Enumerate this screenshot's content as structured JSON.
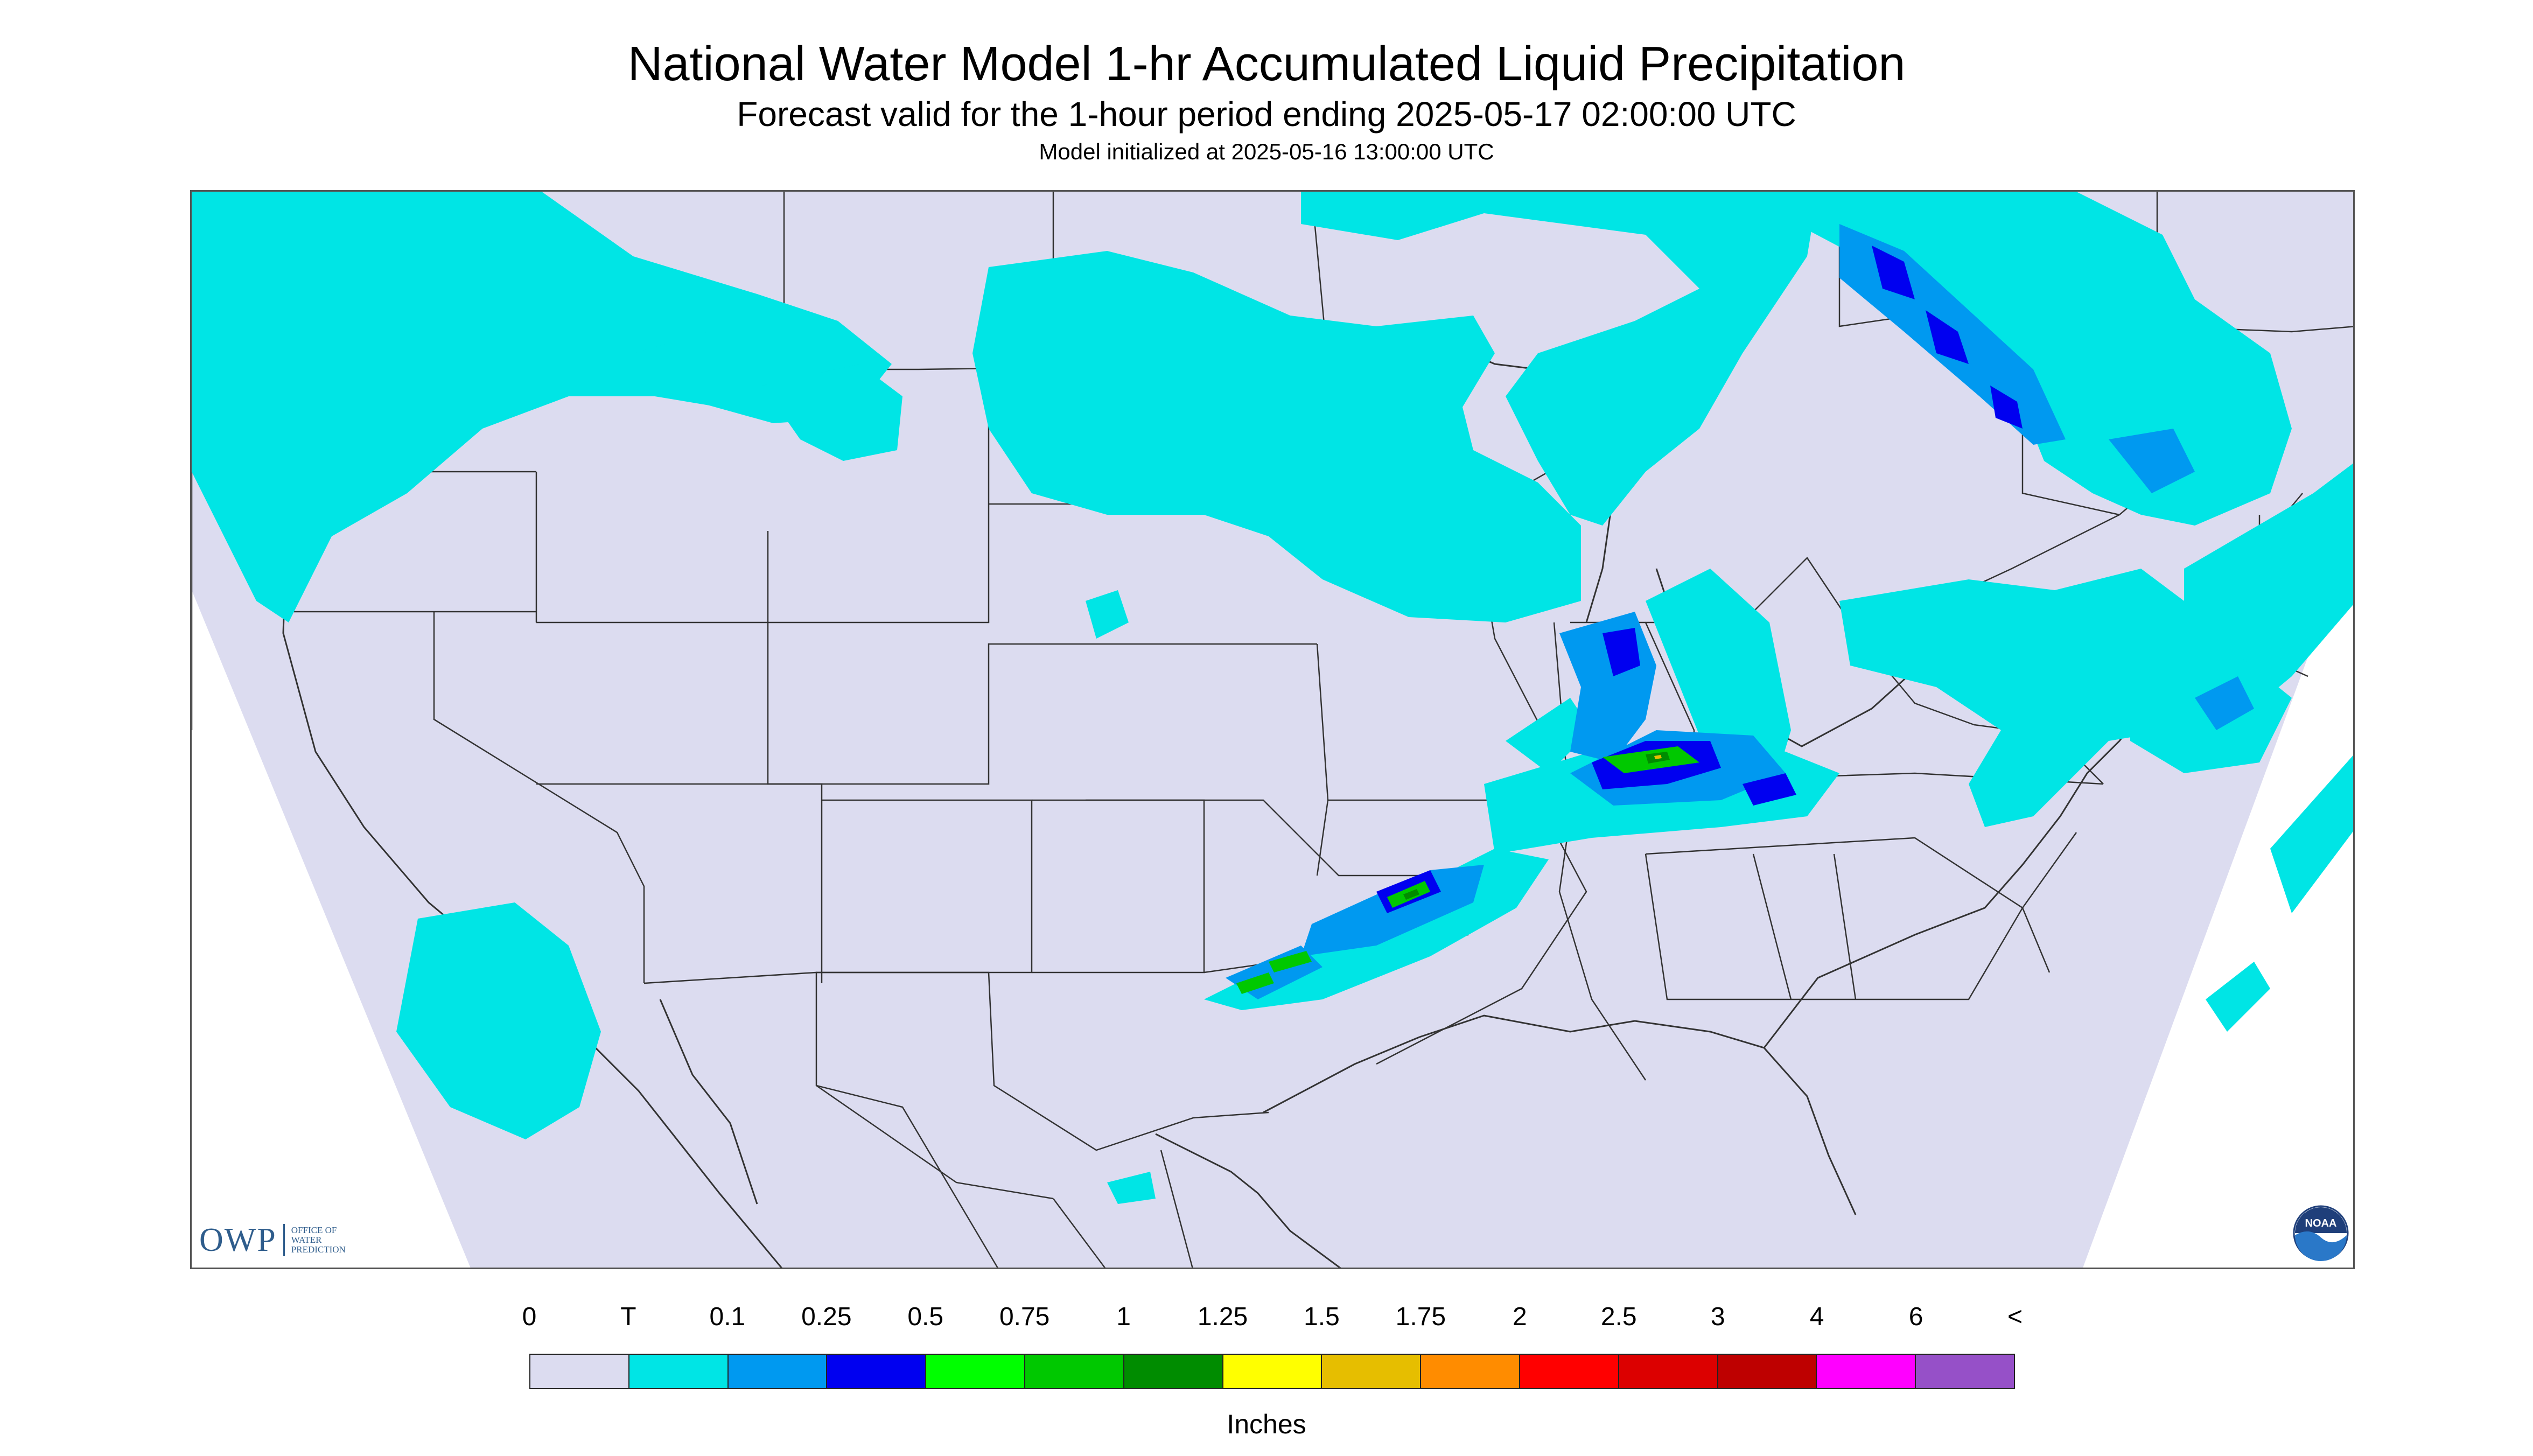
{
  "title": "National Water Model 1-hr Accumulated Liquid Precipitation",
  "subtitle": "Forecast valid for the 1-hour period ending 2025-05-17 02:00:00 UTC",
  "init": "Model initialized at 2025-05-16 13:00:00 UTC",
  "logo_left": {
    "big": "OWP",
    "small": "Office of Water Prediction"
  },
  "logo_right": "NOAA",
  "legend": {
    "units": "Inches",
    "labels": [
      "0",
      "T",
      "0.1",
      "0.25",
      "0.5",
      "0.75",
      "1",
      "1.25",
      "1.5",
      "1.75",
      "2",
      "2.5",
      "3",
      "4",
      "6",
      "<"
    ],
    "colors": [
      "#dcdcf0",
      "#00e5e5",
      "#0099f0",
      "#0000f0",
      "#00ff00",
      "#00c800",
      "#008c00",
      "#ffff00",
      "#e6be00",
      "#ff8c00",
      "#ff0000",
      "#dc0000",
      "#be0000",
      "#ff00ff",
      "#9650c8"
    ]
  },
  "map_colors": {
    "background": "#dcdcf0",
    "border": "#333333",
    "trace": "#00e5e5",
    "light": "#0099f0",
    "moderate": "#0000f0",
    "heavy": "#00c800",
    "heavier": "#008c00",
    "heaviest": "#e6be00"
  }
}
